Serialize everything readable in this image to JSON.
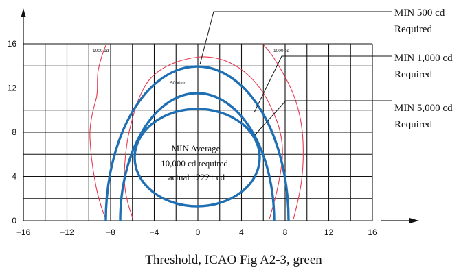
{
  "caption": "Threshold, ICAO Fig A2-3, green",
  "axes": {
    "x_ticks": [
      "−16",
      "−12",
      "−8",
      "−4",
      "0",
      "4",
      "8",
      "12",
      "16"
    ],
    "y_ticks": [
      "0",
      "4",
      "8",
      "12",
      "16"
    ]
  },
  "callouts": [
    {
      "id": "min-500",
      "line1": "MIN 500 cd",
      "line2": "Required"
    },
    {
      "id": "min-1000",
      "line1": "MIN 1,000 cd",
      "line2": "Required"
    },
    {
      "id": "min-5000",
      "line1": "MIN 5,000 cd",
      "line2": "Required"
    }
  ],
  "center_note": {
    "line1": "MIN Average",
    "line2": "10,000 cd required",
    "line3": "actual 12221 cd"
  },
  "small_labels": {
    "left_1000": "1000 cd",
    "right_1000": "1000 cd",
    "inner_5000": "5000 cd"
  },
  "colors": {
    "required_contour": "#1f6fb5",
    "measured_contour": "#e8384f",
    "grid": "#111111"
  }
}
